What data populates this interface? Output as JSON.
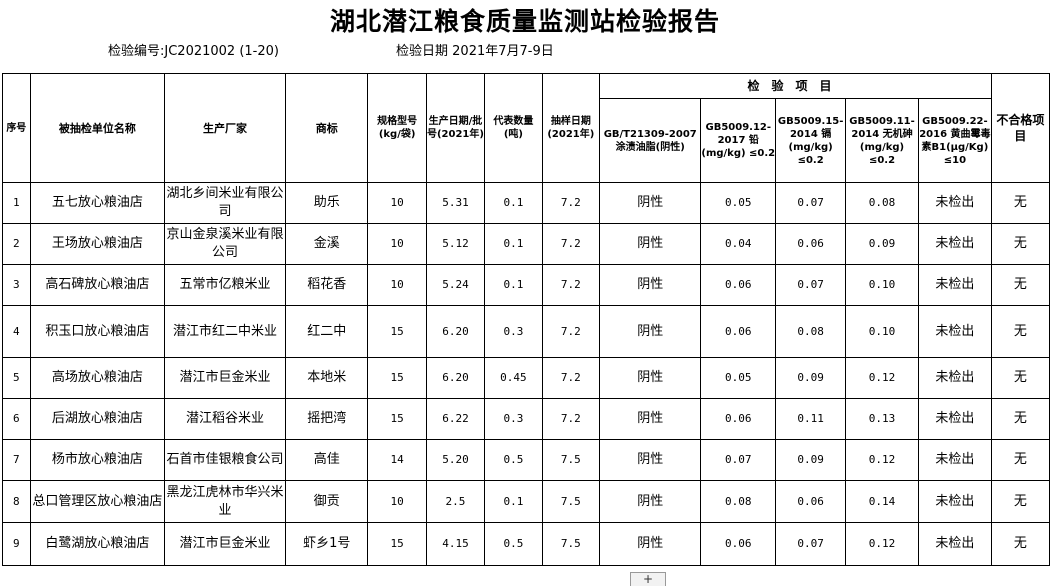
{
  "title": "湖北潜江粮食质量监测站检验报告",
  "report_no": {
    "label": "检验编号:",
    "value": "JC2021002 (1-20)"
  },
  "date": {
    "label": "检验日期",
    "value": "2021年7月7-9日"
  },
  "headers": {
    "seq": "序号",
    "unit": "被抽检单位名称",
    "maker": "生产厂家",
    "brand": "商标",
    "spec": "规格型号(kg/袋)",
    "prod_date": "生产日期/批号(2021年)",
    "qty": "代表数量(吨)",
    "sample_date": "抽样日期(2021年)",
    "group": "检验项目",
    "oil": "GB/T21309-2007 涂渍油脂(阴性)",
    "pb": "GB5009.12-2017 铅(mg/kg) ≤0.2",
    "cd": "GB5009.15-2014 镉(mg/kg) ≤0.2",
    "as": "GB5009.11-2014 无机砷(mg/kg) ≤0.2",
    "afb1": "GB5009.22-2016 黄曲霉毒素B1(μg/Kg) ≤10",
    "fail": "不合格项目"
  },
  "rows": [
    {
      "seq": "1",
      "unit": "五七放心粮油店",
      "maker": "湖北乡间米业有限公司",
      "brand": "助乐",
      "spec": "10",
      "prod": "5.31",
      "qty": "0.1",
      "sample": "7.2",
      "oil": "阴性",
      "pb": "0.05",
      "cd": "0.07",
      "as": "0.08",
      "afb1": "未检出",
      "fail": "无"
    },
    {
      "seq": "2",
      "unit": "王场放心粮油店",
      "maker": "京山金泉溪米业有限公司",
      "brand": "金溪",
      "spec": "10",
      "prod": "5.12",
      "qty": "0.1",
      "sample": "7.2",
      "oil": "阴性",
      "pb": "0.04",
      "cd": "0.06",
      "as": "0.09",
      "afb1": "未检出",
      "fail": "无"
    },
    {
      "seq": "3",
      "unit": "高石碑放心粮油店",
      "maker": "五常市亿粮米业",
      "brand": "稻花香",
      "spec": "10",
      "prod": "5.24",
      "qty": "0.1",
      "sample": "7.2",
      "oil": "阴性",
      "pb": "0.06",
      "cd": "0.07",
      "as": "0.10",
      "afb1": "未检出",
      "fail": "无"
    },
    {
      "seq": "4",
      "unit": "积玉口放心粮油店",
      "maker": "潜江市红二中米业",
      "brand": "红二中",
      "spec": "15",
      "prod": "6.20",
      "qty": "0.3",
      "sample": "7.2",
      "oil": "阴性",
      "pb": "0.06",
      "cd": "0.08",
      "as": "0.10",
      "afb1": "未检出",
      "fail": "无"
    },
    {
      "seq": "5",
      "unit": "高场放心粮油店",
      "maker": "潜江市巨金米业",
      "brand": "本地米",
      "spec": "15",
      "prod": "6.20",
      "qty": "0.45",
      "sample": "7.2",
      "oil": "阴性",
      "pb": "0.05",
      "cd": "0.09",
      "as": "0.12",
      "afb1": "未检出",
      "fail": "无"
    },
    {
      "seq": "6",
      "unit": "后湖放心粮油店",
      "maker": "潜江稻谷米业",
      "brand": "摇把湾",
      "spec": "15",
      "prod": "6.22",
      "qty": "0.3",
      "sample": "7.2",
      "oil": "阴性",
      "pb": "0.06",
      "cd": "0.11",
      "as": "0.13",
      "afb1": "未检出",
      "fail": "无"
    },
    {
      "seq": "7",
      "unit": "杨市放心粮油店",
      "maker": "石首市佳银粮食公司",
      "brand": "高佳",
      "spec": "14",
      "prod": "5.20",
      "qty": "0.5",
      "sample": "7.5",
      "oil": "阴性",
      "pb": "0.07",
      "cd": "0.09",
      "as": "0.12",
      "afb1": "未检出",
      "fail": "无"
    },
    {
      "seq": "8",
      "unit": "总口管理区放心粮油店",
      "maker": "黑龙江虎林市华兴米业",
      "brand": "御贡",
      "spec": "10",
      "prod": "2.5",
      "qty": "0.1",
      "sample": "7.5",
      "oil": "阴性",
      "pb": "0.08",
      "cd": "0.06",
      "as": "0.14",
      "afb1": "未检出",
      "fail": "无"
    },
    {
      "seq": "9",
      "unit": "白鹭湖放心粮油店",
      "maker": "潜江市巨金米业",
      "brand": "虾乡1号",
      "spec": "15",
      "prod": "4.15",
      "qty": "0.5",
      "sample": "7.5",
      "oil": "阴性",
      "pb": "0.06",
      "cd": "0.07",
      "as": "0.12",
      "afb1": "未检出",
      "fail": "无"
    }
  ],
  "sheet_add": "+"
}
